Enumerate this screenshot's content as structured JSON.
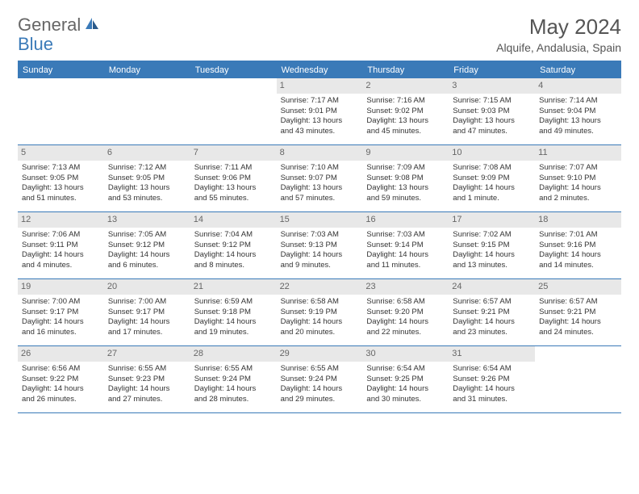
{
  "logo": {
    "text_general": "General",
    "text_blue": "Blue"
  },
  "title": "May 2024",
  "location": "Alquife, Andalusia, Spain",
  "colors": {
    "header_bg": "#3a7ab8",
    "day_num_bg": "#e8e8e8",
    "text": "#333333",
    "title_text": "#555555"
  },
  "day_headers": [
    "Sunday",
    "Monday",
    "Tuesday",
    "Wednesday",
    "Thursday",
    "Friday",
    "Saturday"
  ],
  "weeks": [
    [
      {
        "num": "",
        "lines": []
      },
      {
        "num": "",
        "lines": []
      },
      {
        "num": "",
        "lines": []
      },
      {
        "num": "1",
        "lines": [
          "Sunrise: 7:17 AM",
          "Sunset: 9:01 PM",
          "Daylight: 13 hours",
          "and 43 minutes."
        ]
      },
      {
        "num": "2",
        "lines": [
          "Sunrise: 7:16 AM",
          "Sunset: 9:02 PM",
          "Daylight: 13 hours",
          "and 45 minutes."
        ]
      },
      {
        "num": "3",
        "lines": [
          "Sunrise: 7:15 AM",
          "Sunset: 9:03 PM",
          "Daylight: 13 hours",
          "and 47 minutes."
        ]
      },
      {
        "num": "4",
        "lines": [
          "Sunrise: 7:14 AM",
          "Sunset: 9:04 PM",
          "Daylight: 13 hours",
          "and 49 minutes."
        ]
      }
    ],
    [
      {
        "num": "5",
        "lines": [
          "Sunrise: 7:13 AM",
          "Sunset: 9:05 PM",
          "Daylight: 13 hours",
          "and 51 minutes."
        ]
      },
      {
        "num": "6",
        "lines": [
          "Sunrise: 7:12 AM",
          "Sunset: 9:05 PM",
          "Daylight: 13 hours",
          "and 53 minutes."
        ]
      },
      {
        "num": "7",
        "lines": [
          "Sunrise: 7:11 AM",
          "Sunset: 9:06 PM",
          "Daylight: 13 hours",
          "and 55 minutes."
        ]
      },
      {
        "num": "8",
        "lines": [
          "Sunrise: 7:10 AM",
          "Sunset: 9:07 PM",
          "Daylight: 13 hours",
          "and 57 minutes."
        ]
      },
      {
        "num": "9",
        "lines": [
          "Sunrise: 7:09 AM",
          "Sunset: 9:08 PM",
          "Daylight: 13 hours",
          "and 59 minutes."
        ]
      },
      {
        "num": "10",
        "lines": [
          "Sunrise: 7:08 AM",
          "Sunset: 9:09 PM",
          "Daylight: 14 hours",
          "and 1 minute."
        ]
      },
      {
        "num": "11",
        "lines": [
          "Sunrise: 7:07 AM",
          "Sunset: 9:10 PM",
          "Daylight: 14 hours",
          "and 2 minutes."
        ]
      }
    ],
    [
      {
        "num": "12",
        "lines": [
          "Sunrise: 7:06 AM",
          "Sunset: 9:11 PM",
          "Daylight: 14 hours",
          "and 4 minutes."
        ]
      },
      {
        "num": "13",
        "lines": [
          "Sunrise: 7:05 AM",
          "Sunset: 9:12 PM",
          "Daylight: 14 hours",
          "and 6 minutes."
        ]
      },
      {
        "num": "14",
        "lines": [
          "Sunrise: 7:04 AM",
          "Sunset: 9:12 PM",
          "Daylight: 14 hours",
          "and 8 minutes."
        ]
      },
      {
        "num": "15",
        "lines": [
          "Sunrise: 7:03 AM",
          "Sunset: 9:13 PM",
          "Daylight: 14 hours",
          "and 9 minutes."
        ]
      },
      {
        "num": "16",
        "lines": [
          "Sunrise: 7:03 AM",
          "Sunset: 9:14 PM",
          "Daylight: 14 hours",
          "and 11 minutes."
        ]
      },
      {
        "num": "17",
        "lines": [
          "Sunrise: 7:02 AM",
          "Sunset: 9:15 PM",
          "Daylight: 14 hours",
          "and 13 minutes."
        ]
      },
      {
        "num": "18",
        "lines": [
          "Sunrise: 7:01 AM",
          "Sunset: 9:16 PM",
          "Daylight: 14 hours",
          "and 14 minutes."
        ]
      }
    ],
    [
      {
        "num": "19",
        "lines": [
          "Sunrise: 7:00 AM",
          "Sunset: 9:17 PM",
          "Daylight: 14 hours",
          "and 16 minutes."
        ]
      },
      {
        "num": "20",
        "lines": [
          "Sunrise: 7:00 AM",
          "Sunset: 9:17 PM",
          "Daylight: 14 hours",
          "and 17 minutes."
        ]
      },
      {
        "num": "21",
        "lines": [
          "Sunrise: 6:59 AM",
          "Sunset: 9:18 PM",
          "Daylight: 14 hours",
          "and 19 minutes."
        ]
      },
      {
        "num": "22",
        "lines": [
          "Sunrise: 6:58 AM",
          "Sunset: 9:19 PM",
          "Daylight: 14 hours",
          "and 20 minutes."
        ]
      },
      {
        "num": "23",
        "lines": [
          "Sunrise: 6:58 AM",
          "Sunset: 9:20 PM",
          "Daylight: 14 hours",
          "and 22 minutes."
        ]
      },
      {
        "num": "24",
        "lines": [
          "Sunrise: 6:57 AM",
          "Sunset: 9:21 PM",
          "Daylight: 14 hours",
          "and 23 minutes."
        ]
      },
      {
        "num": "25",
        "lines": [
          "Sunrise: 6:57 AM",
          "Sunset: 9:21 PM",
          "Daylight: 14 hours",
          "and 24 minutes."
        ]
      }
    ],
    [
      {
        "num": "26",
        "lines": [
          "Sunrise: 6:56 AM",
          "Sunset: 9:22 PM",
          "Daylight: 14 hours",
          "and 26 minutes."
        ]
      },
      {
        "num": "27",
        "lines": [
          "Sunrise: 6:55 AM",
          "Sunset: 9:23 PM",
          "Daylight: 14 hours",
          "and 27 minutes."
        ]
      },
      {
        "num": "28",
        "lines": [
          "Sunrise: 6:55 AM",
          "Sunset: 9:24 PM",
          "Daylight: 14 hours",
          "and 28 minutes."
        ]
      },
      {
        "num": "29",
        "lines": [
          "Sunrise: 6:55 AM",
          "Sunset: 9:24 PM",
          "Daylight: 14 hours",
          "and 29 minutes."
        ]
      },
      {
        "num": "30",
        "lines": [
          "Sunrise: 6:54 AM",
          "Sunset: 9:25 PM",
          "Daylight: 14 hours",
          "and 30 minutes."
        ]
      },
      {
        "num": "31",
        "lines": [
          "Sunrise: 6:54 AM",
          "Sunset: 9:26 PM",
          "Daylight: 14 hours",
          "and 31 minutes."
        ]
      },
      {
        "num": "",
        "lines": []
      }
    ]
  ]
}
